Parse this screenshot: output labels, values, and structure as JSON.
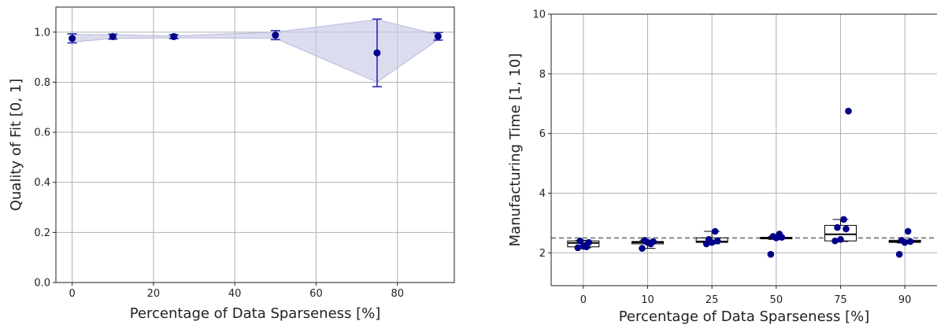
{
  "chart_data": [
    {
      "type": "scatter",
      "xlabel": "Percentage of Data Sparseness [%]",
      "ylabel": "Quality of Fit [0, 1]",
      "xlim": [
        -4,
        94
      ],
      "ylim": [
        0,
        1.1
      ],
      "xticks": [
        0,
        20,
        40,
        60,
        80
      ],
      "yticks": [
        0.0,
        0.2,
        0.4,
        0.6,
        0.8,
        1.0
      ],
      "xtick_labels": [
        "0",
        "20",
        "40",
        "60",
        "80"
      ],
      "ytick_labels": [
        "0.0",
        "0.2",
        "0.4",
        "0.6",
        "0.8",
        "1.0"
      ],
      "grid": true,
      "points": [
        {
          "x": 0,
          "y": 0.975,
          "err": 0.018
        },
        {
          "x": 10,
          "y": 0.982,
          "err": 0.01
        },
        {
          "x": 25,
          "y": 0.982,
          "err": 0.008
        },
        {
          "x": 50,
          "y": 0.988,
          "err": 0.018
        },
        {
          "x": 75,
          "y": 0.917,
          "err": 0.135
        },
        {
          "x": 90,
          "y": 0.983,
          "err": 0.015
        }
      ],
      "band": {
        "lower": [
          0.96,
          0.975,
          0.977,
          0.975,
          0.8,
          0.97
        ],
        "upper": [
          0.99,
          0.99,
          0.985,
          1.0,
          1.05,
          0.99
        ]
      },
      "colors": {
        "marker": "#00008b",
        "errorbar": "#2a2ab0",
        "band": "#c9c9e6"
      }
    },
    {
      "type": "box",
      "xlabel": "Percentage of Data Sparseness [%]",
      "ylabel": "Manufacturing Time [1, 10]",
      "categories": [
        "0",
        "10",
        "25",
        "50",
        "75",
        "90"
      ],
      "ylim": [
        0.9,
        10
      ],
      "yticks": [
        2,
        4,
        6,
        8,
        10
      ],
      "ytick_labels": [
        "2",
        "4",
        "6",
        "8",
        "10"
      ],
      "grid": true,
      "reference_line": 2.5,
      "boxes": [
        {
          "whislo": 2.17,
          "q1": 2.2,
          "med": 2.33,
          "q3": 2.4,
          "whishi": 2.42
        },
        {
          "whislo": 2.15,
          "q1": 2.3,
          "med": 2.35,
          "q3": 2.38,
          "whishi": 2.42
        },
        {
          "whislo": 2.3,
          "q1": 2.35,
          "med": 2.38,
          "q3": 2.5,
          "whishi": 2.72
        },
        {
          "whislo": 2.45,
          "q1": 2.47,
          "med": 2.5,
          "q3": 2.52,
          "whishi": 2.55
        },
        {
          "whislo": 2.38,
          "q1": 2.4,
          "med": 2.62,
          "q3": 2.92,
          "whishi": 3.12
        },
        {
          "whislo": 2.33,
          "q1": 2.35,
          "med": 2.38,
          "q3": 2.42,
          "whishi": 2.42
        }
      ],
      "points": [
        [
          2.17,
          2.22,
          2.35,
          2.4,
          2.2
        ],
        [
          2.15,
          2.35,
          2.38,
          2.42,
          2.3
        ],
        [
          2.3,
          2.35,
          2.4,
          2.45,
          2.72
        ],
        [
          1.95,
          2.5,
          2.52,
          2.55,
          2.63
        ],
        [
          2.4,
          2.45,
          2.8,
          2.85,
          3.12,
          6.75
        ],
        [
          1.95,
          2.35,
          2.38,
          2.42,
          2.72
        ]
      ],
      "colors": {
        "marker": "#00008b",
        "box": "#000000",
        "reference": "#8a8a8a"
      }
    }
  ]
}
